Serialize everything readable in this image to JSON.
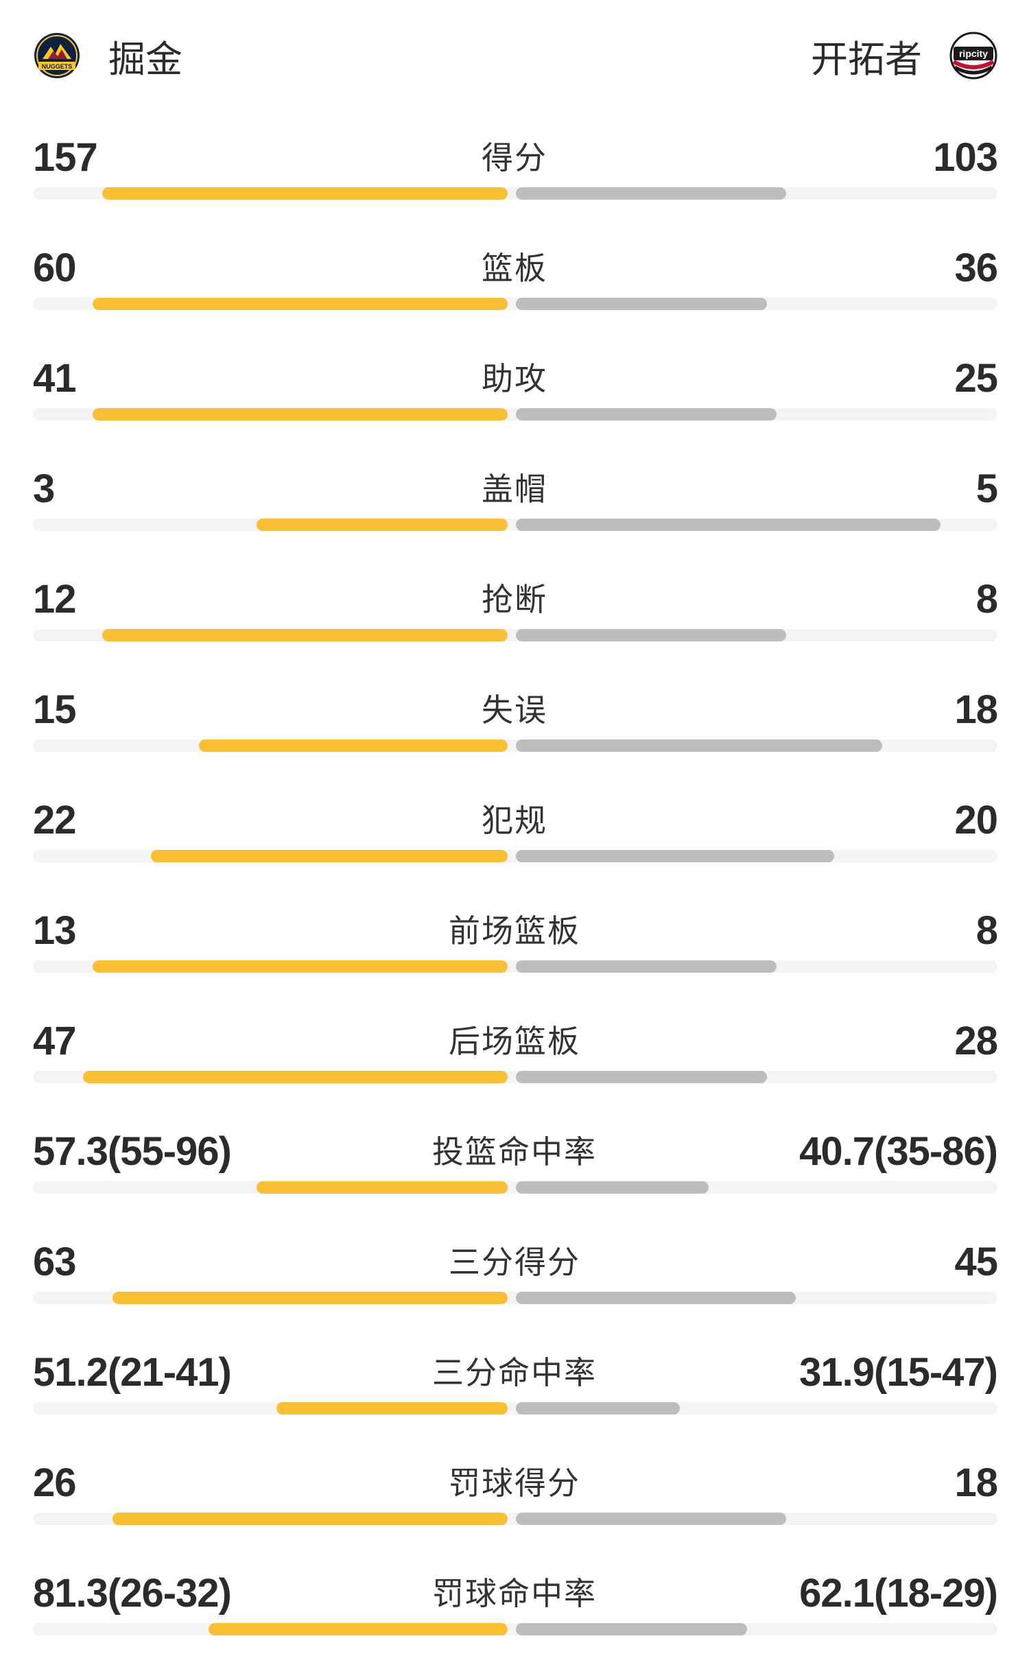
{
  "home": {
    "name": "掘金",
    "logo_icon": "nuggets-logo-icon",
    "color": "#fbbf33"
  },
  "away": {
    "name": "开拓者",
    "logo_icon": "blazers-ripcity-logo-icon",
    "logo_text": "ripcity",
    "color": "#bdbdbd"
  },
  "max_bar_fraction": 0.5,
  "stats": [
    {
      "label": "得分",
      "home": "157",
      "away": "103",
      "home_fill": 0.42,
      "away_fill": 0.28
    },
    {
      "label": "篮板",
      "home": "60",
      "away": "36",
      "home_fill": 0.43,
      "away_fill": 0.26
    },
    {
      "label": "助攻",
      "home": "41",
      "away": "25",
      "home_fill": 0.43,
      "away_fill": 0.27
    },
    {
      "label": "盖帽",
      "home": "3",
      "away": "5",
      "home_fill": 0.26,
      "away_fill": 0.44
    },
    {
      "label": "抢断",
      "home": "12",
      "away": "8",
      "home_fill": 0.42,
      "away_fill": 0.28
    },
    {
      "label": "失误",
      "home": "15",
      "away": "18",
      "home_fill": 0.32,
      "away_fill": 0.38
    },
    {
      "label": "犯规",
      "home": "22",
      "away": "20",
      "home_fill": 0.37,
      "away_fill": 0.33
    },
    {
      "label": "前场篮板",
      "home": "13",
      "away": "8",
      "home_fill": 0.43,
      "away_fill": 0.27
    },
    {
      "label": "后场篮板",
      "home": "47",
      "away": "28",
      "home_fill": 0.44,
      "away_fill": 0.26
    },
    {
      "label": "投篮命中率",
      "home": "57.3(55-96)",
      "away": "40.7(35-86)",
      "home_fill": 0.26,
      "away_fill": 0.2
    },
    {
      "label": "三分得分",
      "home": "63",
      "away": "45",
      "home_fill": 0.41,
      "away_fill": 0.29
    },
    {
      "label": "三分命中率",
      "home": "51.2(21-41)",
      "away": "31.9(15-47)",
      "home_fill": 0.24,
      "away_fill": 0.17
    },
    {
      "label": "罚球得分",
      "home": "26",
      "away": "18",
      "home_fill": 0.41,
      "away_fill": 0.28
    },
    {
      "label": "罚球命中率",
      "home": "81.3(26-32)",
      "away": "62.1(18-29)",
      "home_fill": 0.31,
      "away_fill": 0.24
    }
  ]
}
